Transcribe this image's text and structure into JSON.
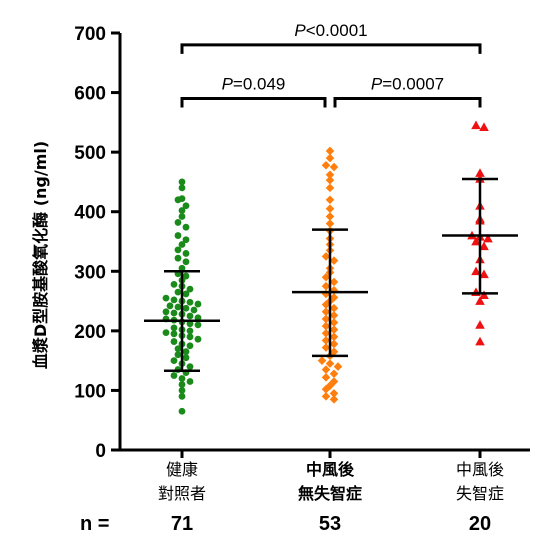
{
  "chart_data": {
    "type": "scatter",
    "subtype": "dot-plot with mean and SD error bars",
    "ylabel": "血漿D型胺基酸氧化酶 (ng/ml)",
    "ylim": [
      0,
      700
    ],
    "yticks": [
      "0",
      "100",
      "200",
      "300",
      "400",
      "500",
      "600",
      "700"
    ],
    "ytick_values": [
      0,
      100,
      200,
      300,
      400,
      500,
      600,
      700
    ],
    "grid": false,
    "legend": "none",
    "n_prefix": "n  =",
    "categories": [
      {
        "label_lines": [
          "健康",
          "對照者"
        ],
        "bold": false,
        "n": "71",
        "color": "#1a8a1a",
        "marker": "circle",
        "mean": 217,
        "sd_low": 133,
        "sd_high": 300,
        "values": [
          450,
          440,
          422,
          420,
          410,
          402,
          392,
          382,
          374,
          360,
          353,
          345,
          336,
          330,
          322,
          316,
          305,
          296,
          292,
          285,
          278,
          275,
          270,
          265,
          262,
          255,
          252,
          250,
          248,
          245,
          242,
          240,
          238,
          235,
          232,
          230,
          228,
          225,
          222,
          220,
          218,
          215,
          212,
          210,
          205,
          202,
          200,
          197,
          195,
          192,
          190,
          186,
          182,
          178,
          175,
          170,
          165,
          160,
          155,
          150,
          145,
          140,
          135,
          130,
          125,
          120,
          115,
          110,
          100,
          90,
          65
        ]
      },
      {
        "label_lines": [
          "中風後",
          "無失智症"
        ],
        "bold": true,
        "n": "53",
        "color": "#ff7f0e",
        "marker": "diamond",
        "mean": 265,
        "sd_low": 158,
        "sd_high": 370,
        "values": [
          502,
          490,
          478,
          475,
          462,
          453,
          440,
          420,
          405,
          392,
          380,
          368,
          355,
          345,
          335,
          325,
          318,
          305,
          298,
          290,
          282,
          275,
          268,
          262,
          256,
          250,
          244,
          238,
          232,
          226,
          220,
          214,
          208,
          202,
          196,
          190,
          184,
          178,
          172,
          165,
          158,
          150,
          145,
          140,
          135,
          128,
          122,
          115,
          108,
          102,
          95,
          90,
          85
        ]
      },
      {
        "label_lines": [
          "中風後",
          "失智症"
        ],
        "bold": false,
        "n": "20",
        "color": "#ee1111",
        "marker": "triangle",
        "mean": 360,
        "sd_low": 263,
        "sd_high": 455,
        "values": [
          545,
          542,
          465,
          455,
          410,
          388,
          385,
          360,
          358,
          355,
          350,
          342,
          320,
          300,
          295,
          265,
          260,
          250,
          210,
          182
        ]
      }
    ],
    "annotations": [
      {
        "from": 0,
        "to": 2,
        "y": 680,
        "p_letter": "P",
        "p_rest": "<0.0001"
      },
      {
        "from": 0,
        "to": 1,
        "y": 590,
        "p_letter": "P",
        "p_rest": "=0.049"
      },
      {
        "from": 1,
        "to": 2,
        "y": 590,
        "p_letter": "P",
        "p_rest": "=0.0007"
      }
    ]
  }
}
